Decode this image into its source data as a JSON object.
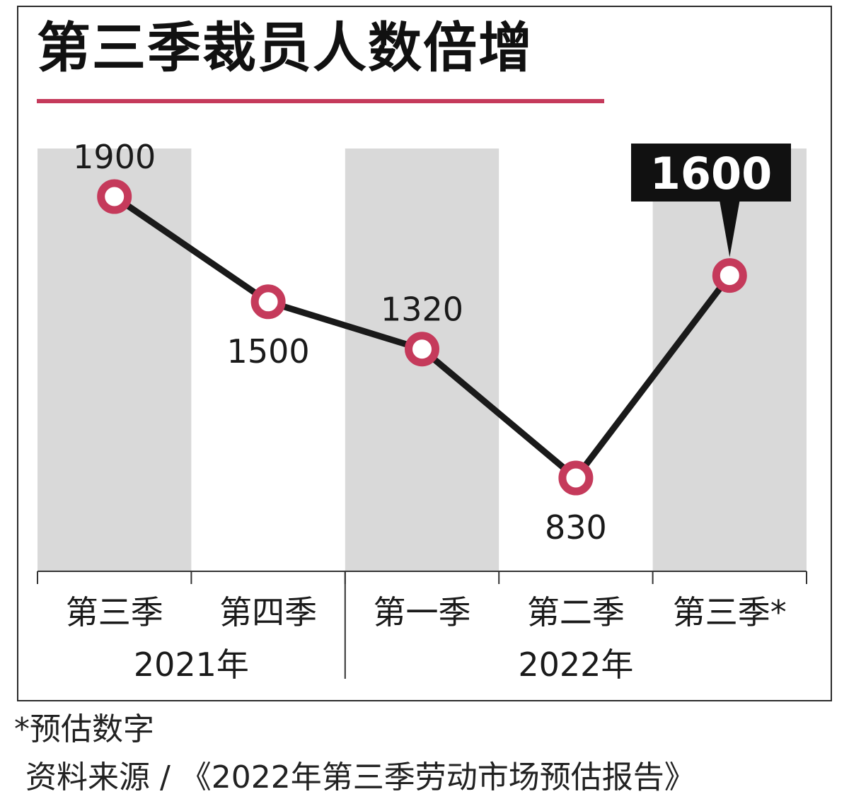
{
  "chart_data": {
    "type": "line",
    "title": "第三季裁员人数倍增",
    "categories": [
      "第三季",
      "第四季",
      "第一季",
      "第二季",
      "第三季*"
    ],
    "year_groups": [
      {
        "label": "2021年",
        "from": 0,
        "to": 1
      },
      {
        "label": "2022年",
        "from": 2,
        "to": 4
      }
    ],
    "series": [
      {
        "values": [
          1900,
          1500,
          1320,
          830,
          1600
        ]
      }
    ],
    "data_labels": [
      "1900",
      "1500",
      "1320",
      "830",
      "1600"
    ],
    "highlight_index": 4,
    "ylim": [
      0,
      2200
    ],
    "grid": false,
    "colors": {
      "band": "#d9d9d9",
      "line": "#1a1a1a",
      "marker_stroke": "#c53a5b",
      "marker_fill": "#ffffff",
      "highlight_bg": "#111111",
      "accent": "#c53a5b"
    }
  },
  "footnote": "*预估数字",
  "source": "资料来源 / 《2022年第三季劳动市场预估报告》"
}
